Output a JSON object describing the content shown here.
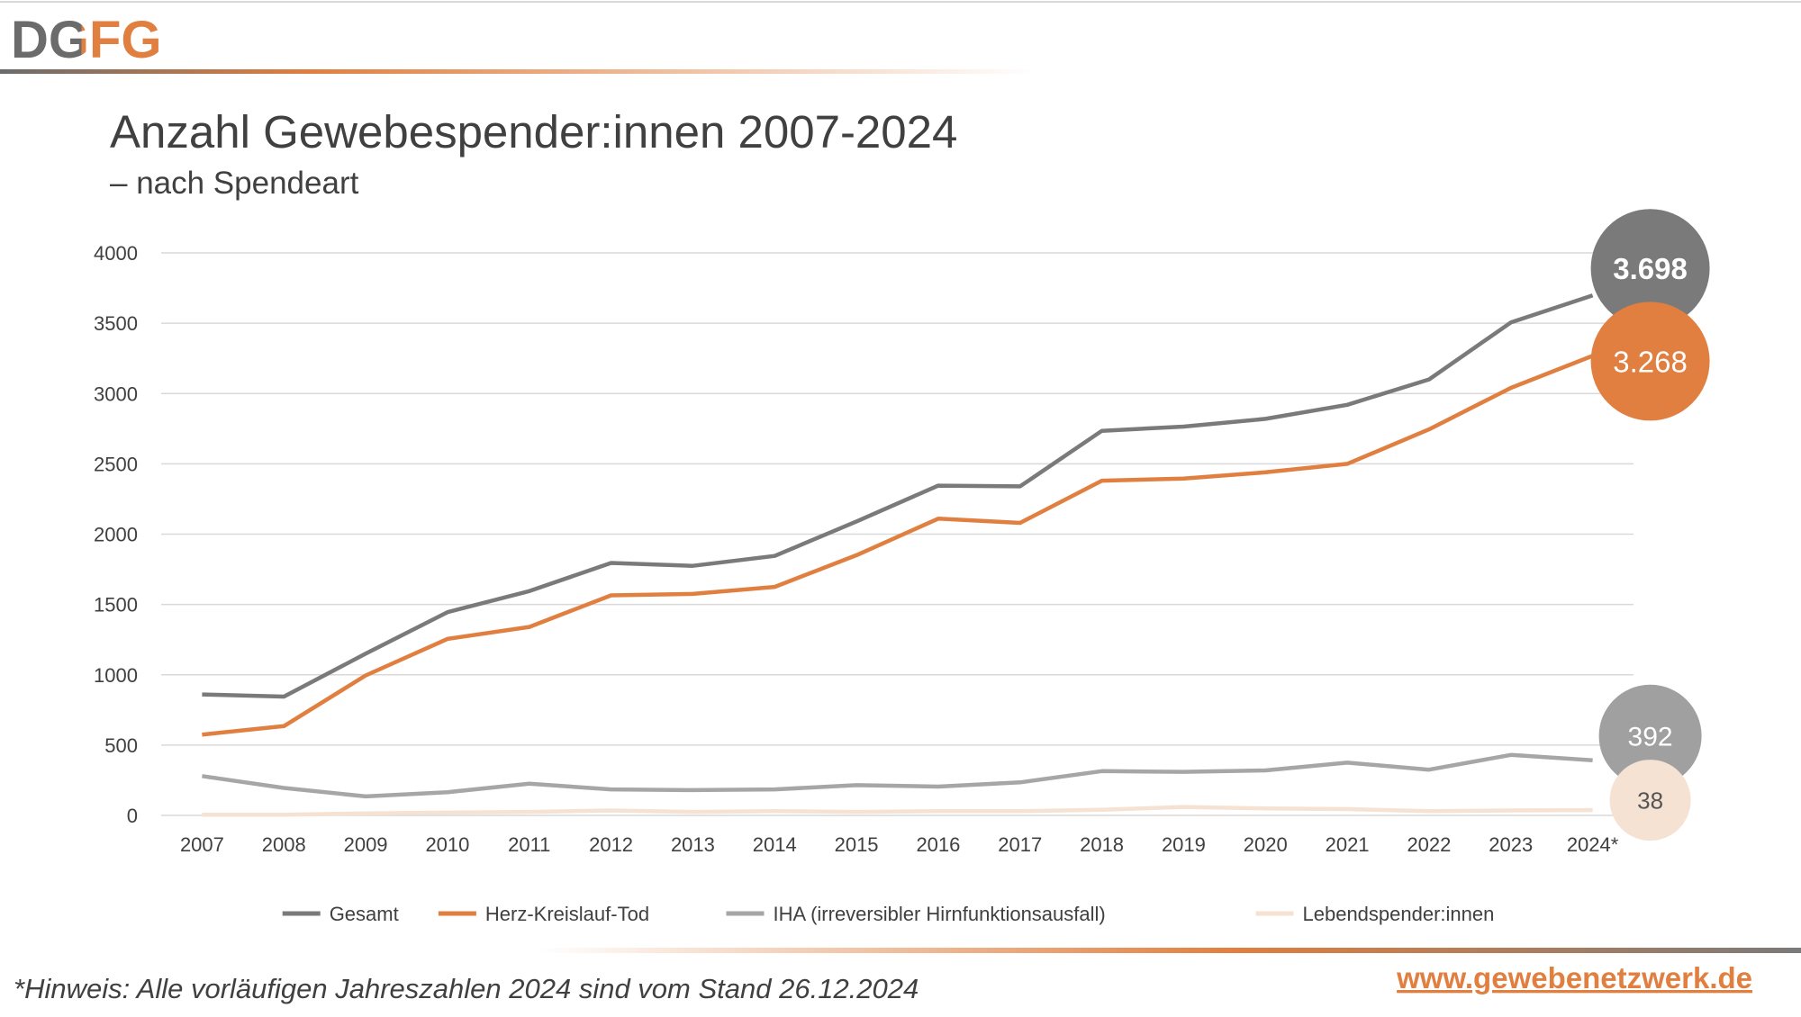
{
  "header": {
    "logo": "DGFG"
  },
  "chart_data": {
    "type": "line",
    "title": "Anzahl Gewebespender:innen 2007-2024",
    "subtitle": "– nach Spendeart",
    "categories": [
      "2007",
      "2008",
      "2009",
      "2010",
      "2011",
      "2012",
      "2013",
      "2014",
      "2015",
      "2016",
      "2017",
      "2018",
      "2019",
      "2020",
      "2021",
      "2022",
      "2023",
      "2024*"
    ],
    "ylim": [
      0,
      4000
    ],
    "yticks": [
      0,
      500,
      1000,
      1500,
      2000,
      2500,
      3000,
      3500,
      4000
    ],
    "grid": true,
    "legend": "bottom",
    "series": [
      {
        "name": "Gesamt",
        "color": "#7a7a7a",
        "values": [
          860,
          845,
          1150,
          1445,
          1595,
          1795,
          1775,
          1845,
          2090,
          2345,
          2340,
          2735,
          2765,
          2820,
          2920,
          3100,
          3505,
          3698
        ],
        "value_labels": [
          null,
          null,
          null,
          null,
          null,
          null,
          null,
          null,
          null,
          null,
          null,
          null,
          null,
          null,
          null,
          null,
          null,
          "3.698"
        ]
      },
      {
        "name": "Herz-Kreislauf-Tod",
        "color": "#e07f3f",
        "values": [
          575,
          635,
          995,
          1255,
          1340,
          1565,
          1575,
          1625,
          1850,
          2110,
          2080,
          2380,
          2395,
          2440,
          2500,
          2745,
          3040,
          3268
        ],
        "value_labels": [
          null,
          null,
          null,
          null,
          null,
          null,
          null,
          null,
          null,
          null,
          null,
          null,
          null,
          null,
          null,
          null,
          null,
          "3.268"
        ]
      },
      {
        "name": "IHA (irreversibler Hirnfunktionsausfall)",
        "color": "#a6a6a6",
        "values": [
          280,
          195,
          135,
          165,
          225,
          185,
          180,
          185,
          215,
          205,
          235,
          315,
          310,
          320,
          375,
          325,
          430,
          392
        ]
      },
      {
        "name": "Lebendspender:innen",
        "color": "#f6e2d2",
        "values": [
          5,
          5,
          15,
          20,
          25,
          35,
          25,
          30,
          25,
          30,
          30,
          40,
          60,
          50,
          45,
          30,
          35,
          38
        ]
      }
    ]
  },
  "footer": {
    "note": "*Hinweis: Alle vorläufigen Jahreszahlen 2024 sind vom Stand 26.12.2024",
    "url": "www.gewebenetzwerk.de"
  }
}
